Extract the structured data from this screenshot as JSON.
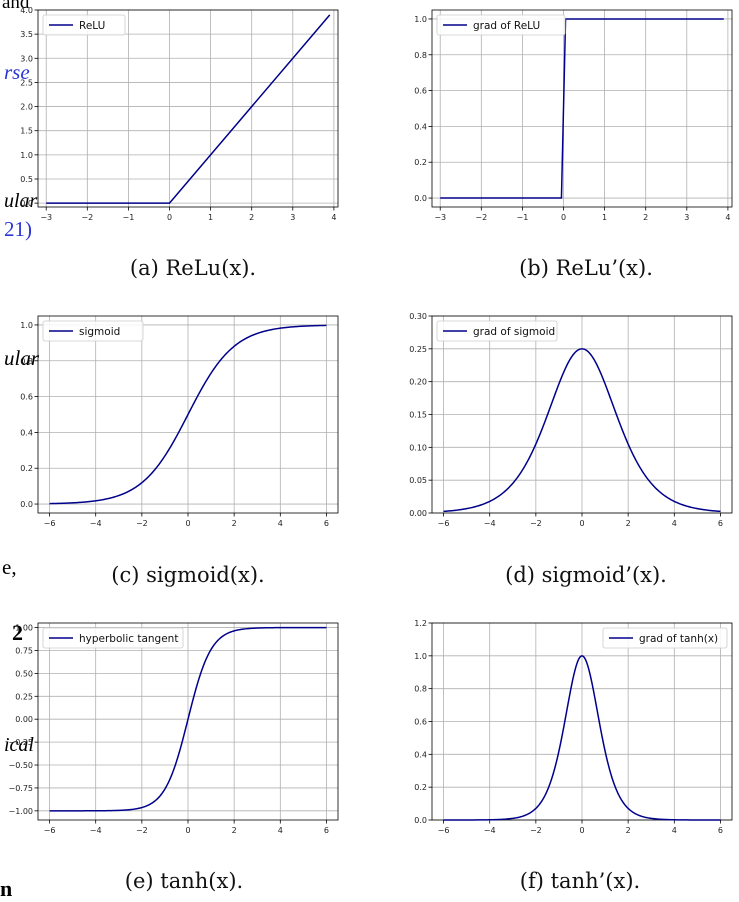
{
  "bleed_text": {
    "t1": "and",
    "t2": "rse",
    "t3": "ular",
    "t4": "21)",
    "t5": "ular",
    "t6": "e,",
    "t7": "2",
    "t8": "ical",
    "t9": "n"
  },
  "captions": {
    "a": "(a) ReLu(x).",
    "b": "(b) ReLu’(x).",
    "c": "(c) sigmoid(x).",
    "d": "(d) sigmoid’(x).",
    "e": "(e) tanh(x).",
    "f": "(f) tanh’(x)."
  },
  "chart_data": [
    {
      "id": "a",
      "type": "line",
      "function": "relu",
      "xlim": [
        -3.2,
        4.1
      ],
      "ylim": [
        -0.08,
        4.0
      ],
      "xticks": [
        -3,
        -2,
        -1,
        0,
        1,
        2,
        3,
        4
      ],
      "yticks": [
        0.0,
        0.5,
        1.0,
        1.5,
        2.0,
        2.5,
        3.0,
        3.5,
        4.0
      ],
      "ytick_labels": [
        "0.0",
        "0.5",
        "1.0",
        "1.5",
        "2.0",
        "2.5",
        "3.0",
        "3.5",
        "4.0"
      ],
      "x_range": [
        -3,
        3.9
      ],
      "series": [
        {
          "name": "ReLU",
          "color": "#00008b"
        }
      ],
      "legend": "upper-left",
      "grid": true
    },
    {
      "id": "b",
      "type": "line",
      "function": "relu_grad",
      "xlim": [
        -3.2,
        4.1
      ],
      "ylim": [
        -0.05,
        1.05
      ],
      "xticks": [
        -3,
        -2,
        -1,
        0,
        1,
        2,
        3,
        4
      ],
      "yticks": [
        0.0,
        0.2,
        0.4,
        0.6,
        0.8,
        1.0
      ],
      "ytick_labels": [
        "0.0",
        "0.2",
        "0.4",
        "0.6",
        "0.8",
        "1.0"
      ],
      "x_range": [
        -3,
        3.9
      ],
      "series": [
        {
          "name": "grad of ReLU",
          "color": "#00008b"
        }
      ],
      "legend": "upper-left",
      "grid": true
    },
    {
      "id": "c",
      "type": "line",
      "function": "sigmoid",
      "xlim": [
        -6.5,
        6.5
      ],
      "ylim": [
        -0.05,
        1.05
      ],
      "xticks": [
        -6,
        -4,
        -2,
        0,
        2,
        4,
        6
      ],
      "yticks": [
        0.0,
        0.2,
        0.4,
        0.6,
        0.8,
        1.0
      ],
      "ytick_labels": [
        "0.0",
        "0.2",
        "0.4",
        "0.6",
        "0.8",
        "1.0"
      ],
      "x_range": [
        -6,
        6
      ],
      "series": [
        {
          "name": "sigmoid",
          "color": "#00008b"
        }
      ],
      "legend": "upper-left",
      "grid": true
    },
    {
      "id": "d",
      "type": "line",
      "function": "sigmoid_grad",
      "xlim": [
        -6.5,
        6.5
      ],
      "ylim": [
        0.0,
        0.3
      ],
      "xticks": [
        -6,
        -4,
        -2,
        0,
        2,
        4,
        6
      ],
      "yticks": [
        0.0,
        0.05,
        0.1,
        0.15,
        0.2,
        0.25,
        0.3
      ],
      "ytick_labels": [
        "0.00",
        "0.05",
        "0.10",
        "0.15",
        "0.20",
        "0.25",
        "0.30"
      ],
      "x_range": [
        -6,
        6
      ],
      "series": [
        {
          "name": "grad of sigmoid",
          "color": "#00008b"
        }
      ],
      "legend": "upper-left",
      "grid": true
    },
    {
      "id": "e",
      "type": "line",
      "function": "tanh",
      "xlim": [
        -6.5,
        6.5
      ],
      "ylim": [
        -1.1,
        1.05
      ],
      "xticks": [
        -6,
        -4,
        -2,
        0,
        2,
        4,
        6
      ],
      "yticks": [
        -1.0,
        -0.75,
        -0.5,
        -0.25,
        0.0,
        0.25,
        0.5,
        0.75,
        1.0
      ],
      "ytick_labels": [
        "−1.00",
        "−0.75",
        "−0.50",
        "−0.25",
        "0.00",
        "0.25",
        "0.50",
        "0.75",
        "1.00"
      ],
      "x_range": [
        -6,
        6
      ],
      "series": [
        {
          "name": "hyperbolic tangent",
          "color": "#00008b"
        }
      ],
      "legend": "upper-left",
      "grid": true
    },
    {
      "id": "f",
      "type": "line",
      "function": "tanh_grad",
      "xlim": [
        -6.5,
        6.5
      ],
      "ylim": [
        0.0,
        1.2
      ],
      "xticks": [
        -6,
        -4,
        -2,
        0,
        2,
        4,
        6
      ],
      "yticks": [
        0.0,
        0.2,
        0.4,
        0.6,
        0.8,
        1.0,
        1.2
      ],
      "ytick_labels": [
        "0.0",
        "0.2",
        "0.4",
        "0.6",
        "0.8",
        "1.0",
        "1.2"
      ],
      "x_range": [
        -6,
        6
      ],
      "series": [
        {
          "name": "grad of tanh(x)",
          "color": "#00008b"
        }
      ],
      "legend": "upper-right",
      "grid": true
    }
  ]
}
